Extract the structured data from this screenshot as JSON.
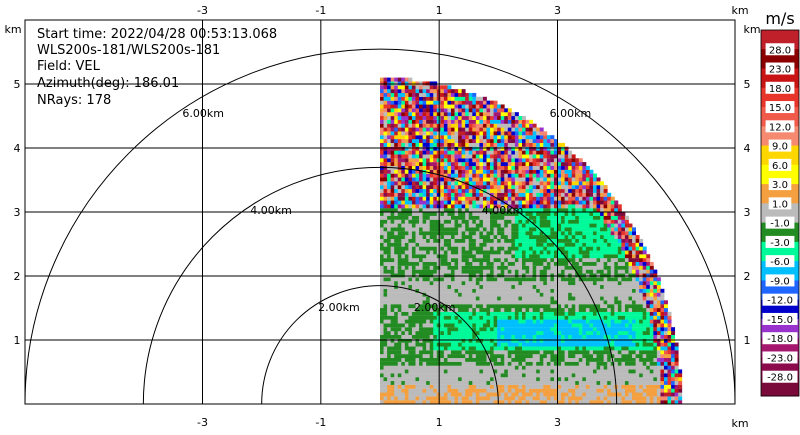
{
  "info": {
    "start_time": "Start time: 2022/04/28 00:53:13.068",
    "instrument": "WLS200s-181/WLS200s-181",
    "field": "Field: VEL",
    "azimuth": "Azimuth(deg): 186.01",
    "nrays": "NRays: 178"
  },
  "colors": {
    "gray": "#bbbbbb",
    "dark_green": "#228b22",
    "spring_green": "#00fa9a",
    "cyan": "#00bfff",
    "orange": "#f4a040"
  },
  "chart_data": {
    "type": "heatmap",
    "sweep": "PPI",
    "x": {
      "unit_label": "km",
      "ticks": [
        -3,
        -1,
        1,
        3
      ],
      "range": [
        -6,
        6
      ]
    },
    "y": {
      "unit_label": "km",
      "ticks": [
        1,
        2,
        3,
        4,
        5
      ],
      "range": [
        0,
        6
      ]
    },
    "range_rings": [
      {
        "radius_km": 2,
        "label": "2.00km"
      },
      {
        "radius_km": 4,
        "label": "4.00km"
      },
      {
        "radius_km": 6,
        "label": "6.00km"
      }
    ],
    "coverage": {
      "azimuth_start_deg": 0,
      "azimuth_end_deg": 90,
      "max_range_km": 5.1
    },
    "colorbar": {
      "unit": "m/s",
      "labels": [
        "28.0",
        "23.0",
        "18.0",
        "15.0",
        "12.0",
        "9.0",
        "6.0",
        "3.0",
        "1.0",
        "-1.0",
        "-3.0",
        "-6.0",
        "-9.0",
        "-12.0",
        "-15.0",
        "-18.0",
        "-23.0",
        "-28.0"
      ],
      "colors": [
        "#c0202a",
        "#8b0000",
        "#c81414",
        "#e8352b",
        "#f05a4a",
        "#f58a70",
        "#ffd700",
        "#ffff00",
        "#f4a040",
        "#bbbbbb",
        "#228b22",
        "#00fa9a",
        "#00bfff",
        "#1e66ff",
        "#0000cd",
        "#9932cc",
        "#a5166e",
        "#8b0a4b",
        "#7a0a3a"
      ]
    }
  }
}
